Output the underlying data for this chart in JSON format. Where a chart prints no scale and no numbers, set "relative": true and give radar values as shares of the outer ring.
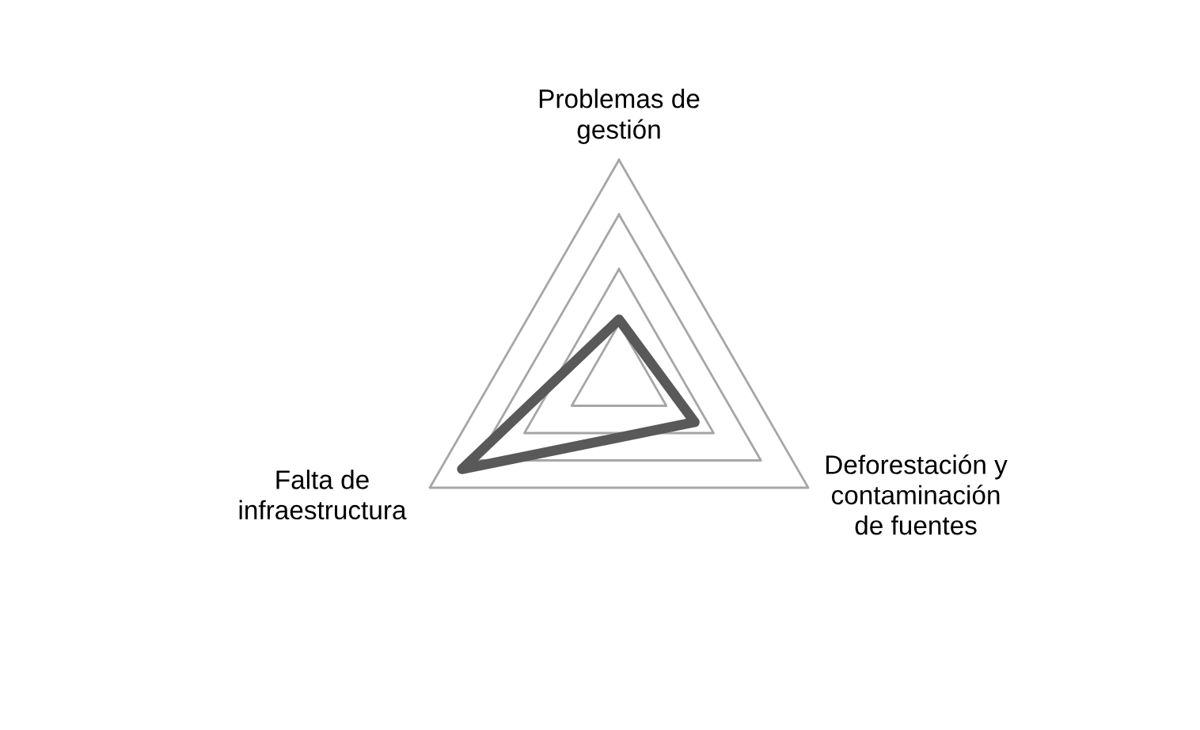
{
  "chart_data": {
    "type": "radar",
    "relative": true,
    "categories": [
      "Problemas de\ngestión",
      "Deforestación y\ncontaminación\nde fuentes",
      "Falta de\ninfraestructura"
    ],
    "series": [
      {
        "color": "#595959",
        "values": [
          0.27,
          0.4,
          0.83
        ]
      }
    ]
  }
}
